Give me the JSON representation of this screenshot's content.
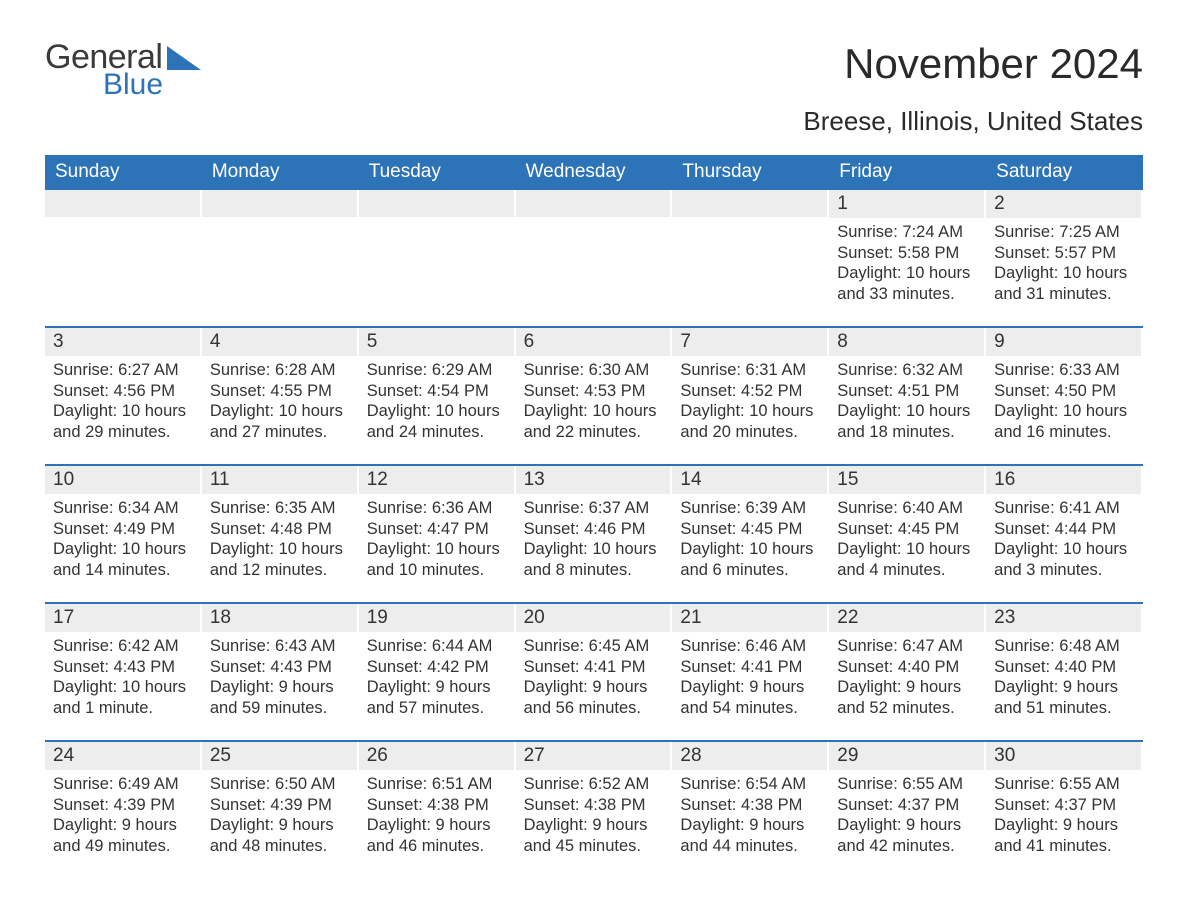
{
  "logo": {
    "word1": "General",
    "word2": "Blue"
  },
  "title": "November 2024",
  "location": "Breese, Illinois, United States",
  "colors": {
    "header_bg": "#2d73b8",
    "header_text": "#ffffff",
    "daynum_bg": "#ededed",
    "text": "#333333",
    "rule": "#2d73b8",
    "page_bg": "#ffffff",
    "logo_gray": "#3a3a3a",
    "logo_blue": "#2d73b8"
  },
  "typography": {
    "title_fontsize": 42,
    "location_fontsize": 26,
    "dow_fontsize": 19,
    "daynum_fontsize": 19,
    "body_fontsize": 16.5
  },
  "dow": [
    "Sunday",
    "Monday",
    "Tuesday",
    "Wednesday",
    "Thursday",
    "Friday",
    "Saturday"
  ],
  "weeks": [
    [
      {
        "empty": true
      },
      {
        "empty": true
      },
      {
        "empty": true
      },
      {
        "empty": true
      },
      {
        "empty": true
      },
      {
        "n": "1",
        "sunrise": "Sunrise: 7:24 AM",
        "sunset": "Sunset: 5:58 PM",
        "day1": "Daylight: 10 hours",
        "day2": "and 33 minutes."
      },
      {
        "n": "2",
        "sunrise": "Sunrise: 7:25 AM",
        "sunset": "Sunset: 5:57 PM",
        "day1": "Daylight: 10 hours",
        "day2": "and 31 minutes."
      }
    ],
    [
      {
        "n": "3",
        "sunrise": "Sunrise: 6:27 AM",
        "sunset": "Sunset: 4:56 PM",
        "day1": "Daylight: 10 hours",
        "day2": "and 29 minutes."
      },
      {
        "n": "4",
        "sunrise": "Sunrise: 6:28 AM",
        "sunset": "Sunset: 4:55 PM",
        "day1": "Daylight: 10 hours",
        "day2": "and 27 minutes."
      },
      {
        "n": "5",
        "sunrise": "Sunrise: 6:29 AM",
        "sunset": "Sunset: 4:54 PM",
        "day1": "Daylight: 10 hours",
        "day2": "and 24 minutes."
      },
      {
        "n": "6",
        "sunrise": "Sunrise: 6:30 AM",
        "sunset": "Sunset: 4:53 PM",
        "day1": "Daylight: 10 hours",
        "day2": "and 22 minutes."
      },
      {
        "n": "7",
        "sunrise": "Sunrise: 6:31 AM",
        "sunset": "Sunset: 4:52 PM",
        "day1": "Daylight: 10 hours",
        "day2": "and 20 minutes."
      },
      {
        "n": "8",
        "sunrise": "Sunrise: 6:32 AM",
        "sunset": "Sunset: 4:51 PM",
        "day1": "Daylight: 10 hours",
        "day2": "and 18 minutes."
      },
      {
        "n": "9",
        "sunrise": "Sunrise: 6:33 AM",
        "sunset": "Sunset: 4:50 PM",
        "day1": "Daylight: 10 hours",
        "day2": "and 16 minutes."
      }
    ],
    [
      {
        "n": "10",
        "sunrise": "Sunrise: 6:34 AM",
        "sunset": "Sunset: 4:49 PM",
        "day1": "Daylight: 10 hours",
        "day2": "and 14 minutes."
      },
      {
        "n": "11",
        "sunrise": "Sunrise: 6:35 AM",
        "sunset": "Sunset: 4:48 PM",
        "day1": "Daylight: 10 hours",
        "day2": "and 12 minutes."
      },
      {
        "n": "12",
        "sunrise": "Sunrise: 6:36 AM",
        "sunset": "Sunset: 4:47 PM",
        "day1": "Daylight: 10 hours",
        "day2": "and 10 minutes."
      },
      {
        "n": "13",
        "sunrise": "Sunrise: 6:37 AM",
        "sunset": "Sunset: 4:46 PM",
        "day1": "Daylight: 10 hours",
        "day2": "and 8 minutes."
      },
      {
        "n": "14",
        "sunrise": "Sunrise: 6:39 AM",
        "sunset": "Sunset: 4:45 PM",
        "day1": "Daylight: 10 hours",
        "day2": "and 6 minutes."
      },
      {
        "n": "15",
        "sunrise": "Sunrise: 6:40 AM",
        "sunset": "Sunset: 4:45 PM",
        "day1": "Daylight: 10 hours",
        "day2": "and 4 minutes."
      },
      {
        "n": "16",
        "sunrise": "Sunrise: 6:41 AM",
        "sunset": "Sunset: 4:44 PM",
        "day1": "Daylight: 10 hours",
        "day2": "and 3 minutes."
      }
    ],
    [
      {
        "n": "17",
        "sunrise": "Sunrise: 6:42 AM",
        "sunset": "Sunset: 4:43 PM",
        "day1": "Daylight: 10 hours",
        "day2": "and 1 minute."
      },
      {
        "n": "18",
        "sunrise": "Sunrise: 6:43 AM",
        "sunset": "Sunset: 4:43 PM",
        "day1": "Daylight: 9 hours",
        "day2": "and 59 minutes."
      },
      {
        "n": "19",
        "sunrise": "Sunrise: 6:44 AM",
        "sunset": "Sunset: 4:42 PM",
        "day1": "Daylight: 9 hours",
        "day2": "and 57 minutes."
      },
      {
        "n": "20",
        "sunrise": "Sunrise: 6:45 AM",
        "sunset": "Sunset: 4:41 PM",
        "day1": "Daylight: 9 hours",
        "day2": "and 56 minutes."
      },
      {
        "n": "21",
        "sunrise": "Sunrise: 6:46 AM",
        "sunset": "Sunset: 4:41 PM",
        "day1": "Daylight: 9 hours",
        "day2": "and 54 minutes."
      },
      {
        "n": "22",
        "sunrise": "Sunrise: 6:47 AM",
        "sunset": "Sunset: 4:40 PM",
        "day1": "Daylight: 9 hours",
        "day2": "and 52 minutes."
      },
      {
        "n": "23",
        "sunrise": "Sunrise: 6:48 AM",
        "sunset": "Sunset: 4:40 PM",
        "day1": "Daylight: 9 hours",
        "day2": "and 51 minutes."
      }
    ],
    [
      {
        "n": "24",
        "sunrise": "Sunrise: 6:49 AM",
        "sunset": "Sunset: 4:39 PM",
        "day1": "Daylight: 9 hours",
        "day2": "and 49 minutes."
      },
      {
        "n": "25",
        "sunrise": "Sunrise: 6:50 AM",
        "sunset": "Sunset: 4:39 PM",
        "day1": "Daylight: 9 hours",
        "day2": "and 48 minutes."
      },
      {
        "n": "26",
        "sunrise": "Sunrise: 6:51 AM",
        "sunset": "Sunset: 4:38 PM",
        "day1": "Daylight: 9 hours",
        "day2": "and 46 minutes."
      },
      {
        "n": "27",
        "sunrise": "Sunrise: 6:52 AM",
        "sunset": "Sunset: 4:38 PM",
        "day1": "Daylight: 9 hours",
        "day2": "and 45 minutes."
      },
      {
        "n": "28",
        "sunrise": "Sunrise: 6:54 AM",
        "sunset": "Sunset: 4:38 PM",
        "day1": "Daylight: 9 hours",
        "day2": "and 44 minutes."
      },
      {
        "n": "29",
        "sunrise": "Sunrise: 6:55 AM",
        "sunset": "Sunset: 4:37 PM",
        "day1": "Daylight: 9 hours",
        "day2": "and 42 minutes."
      },
      {
        "n": "30",
        "sunrise": "Sunrise: 6:55 AM",
        "sunset": "Sunset: 4:37 PM",
        "day1": "Daylight: 9 hours",
        "day2": "and 41 minutes."
      }
    ]
  ]
}
